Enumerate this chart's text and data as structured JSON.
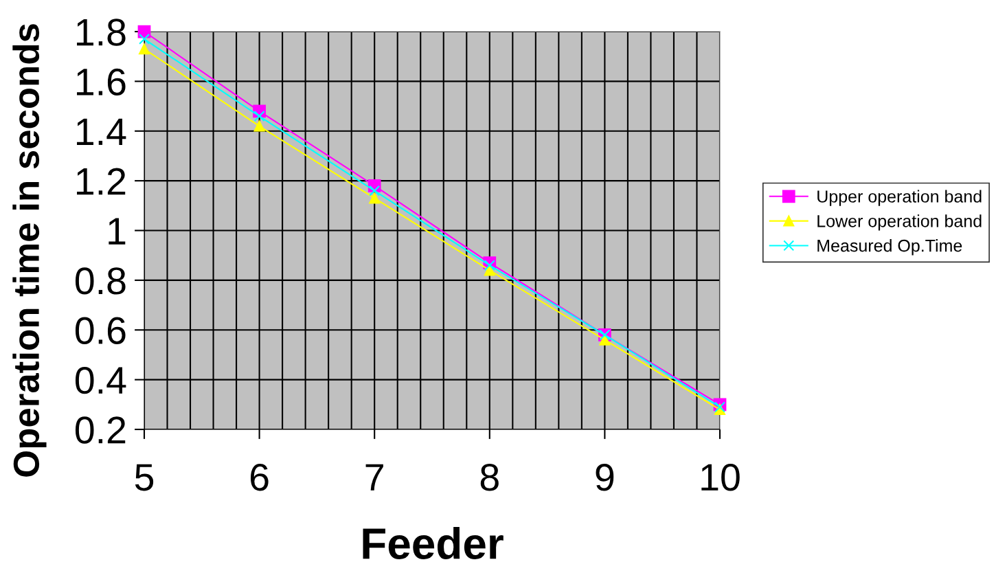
{
  "chart_data": {
    "type": "line",
    "xlabel": "Feeder",
    "ylabel": "Operation time in seconds",
    "x": [
      5,
      6,
      7,
      8,
      9,
      10
    ],
    "series": [
      {
        "name": "Upper operation band",
        "color": "#ff00ff",
        "marker": "square",
        "values": [
          1.8,
          1.48,
          1.18,
          0.87,
          0.58,
          0.3
        ]
      },
      {
        "name": "Lower operation band",
        "color": "#ffff00",
        "marker": "triangle",
        "values": [
          1.73,
          1.42,
          1.13,
          0.84,
          0.56,
          0.28
        ]
      },
      {
        "name": "Measured Op.Time",
        "color": "#00ffff",
        "marker": "cross",
        "values": [
          1.77,
          1.46,
          1.16,
          0.86,
          0.58,
          0.29
        ]
      }
    ],
    "xlim": [
      5,
      10
    ],
    "xticks": [
      5,
      {
        "value": 5.2,
        "label": null
      },
      {
        "value": 5.4,
        "label": null
      },
      {
        "value": 5.6,
        "label": null
      },
      {
        "value": 5.8,
        "label": null
      },
      6,
      {
        "value": 6.2,
        "label": null
      },
      {
        "value": 6.4,
        "label": null
      },
      {
        "value": 6.6,
        "label": null
      },
      {
        "value": 6.8,
        "label": null
      },
      7,
      {
        "value": 7.2,
        "label": null
      },
      {
        "value": 7.4,
        "label": null
      },
      {
        "value": 7.6,
        "label": null
      },
      {
        "value": 7.8,
        "label": null
      },
      8,
      {
        "value": 8.2,
        "label": null
      },
      {
        "value": 8.4,
        "label": null
      },
      {
        "value": 8.6,
        "label": null
      },
      {
        "value": 8.8,
        "label": null
      },
      9,
      {
        "value": 9.2,
        "label": null
      },
      {
        "value": 9.4,
        "label": null
      },
      {
        "value": 9.6,
        "label": null
      },
      {
        "value": 9.8,
        "label": null
      },
      10
    ],
    "ylim": [
      0.2,
      1.8
    ],
    "yticks": [
      0.2,
      0.4,
      0.6,
      0.8,
      1,
      1.2,
      1.4,
      1.6,
      1.8
    ],
    "grid": true,
    "legend": "right",
    "line_style": "solid"
  }
}
